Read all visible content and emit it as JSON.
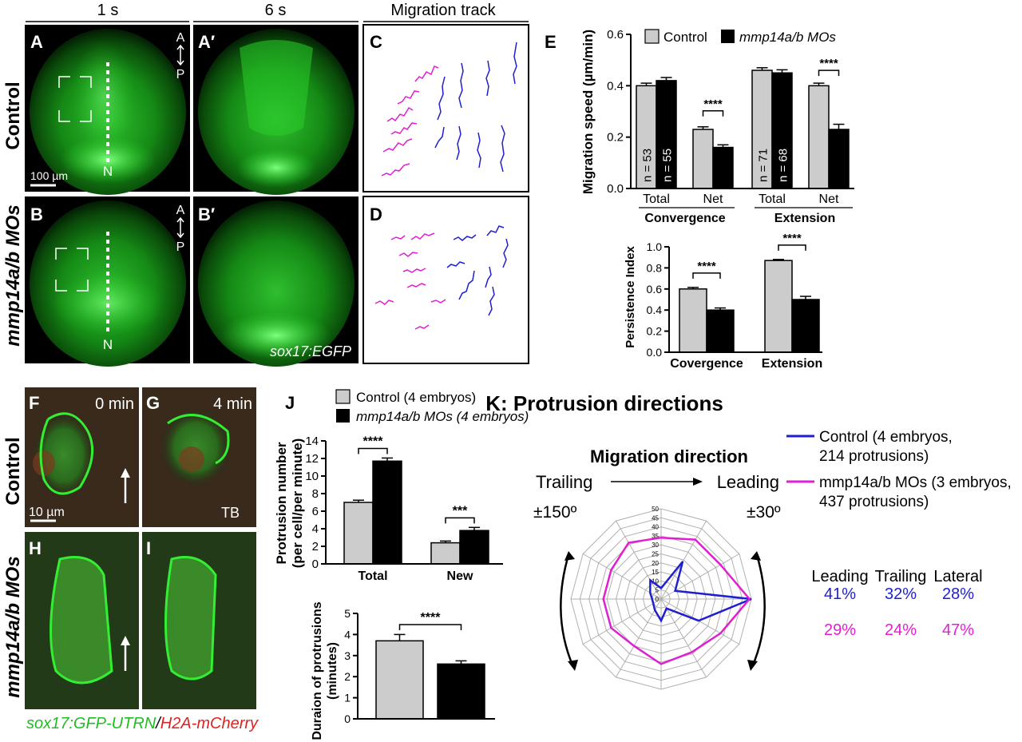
{
  "figure": {
    "col_headers": [
      "1 s",
      "6 s",
      "Migration track"
    ],
    "panel_letters": {
      "A": "A",
      "A2": "A′",
      "B": "B",
      "B2": "B′",
      "C": "C",
      "D": "D",
      "E": "E",
      "F": "F",
      "G": "G",
      "H": "H",
      "I": "I",
      "J": "J"
    },
    "row_labels": {
      "control": "Control",
      "mo": "mmp14a/b MOs"
    },
    "ap_axis": {
      "a": "A",
      "p": "P"
    },
    "notochord": "N",
    "scale_100": "100 µm",
    "scale_10": "10 µm",
    "transgene_1": "sox17:EGFP",
    "time_0": "0 min",
    "time_4": "4 min",
    "tb": "TB",
    "caption_green": "sox17:GFP-UTRN",
    "caption_slash": "/",
    "caption_red": "H2A-mCherry"
  },
  "colors": {
    "control": "#1f1fd0",
    "mo": "#e020d0",
    "gray_bar": "#cccccc",
    "black_bar": "#000000",
    "fluor": "#22dd22"
  },
  "chart_data": [
    {
      "id": "E-speed",
      "type": "bar",
      "ylabel": "Migration speed (µm/min)",
      "ylim": [
        0,
        0.6
      ],
      "yticks": [
        "0.0",
        "0.2",
        "0.4",
        "0.6"
      ],
      "legend": [
        "Control",
        "mmp14a/b MOs"
      ],
      "categories": [
        "Total",
        "Net",
        "Total",
        "Net"
      ],
      "groups": [
        "Convergence",
        "Extension"
      ],
      "series": [
        {
          "name": "Control",
          "values": [
            0.4,
            0.23,
            0.46,
            0.4
          ],
          "err": [
            0.01,
            0.01,
            0.01,
            0.01
          ]
        },
        {
          "name": "mmp14a/b MOs",
          "values": [
            0.42,
            0.16,
            0.45,
            0.23
          ],
          "err": [
            0.012,
            0.01,
            0.012,
            0.02
          ]
        }
      ],
      "n_labels": [
        "n = 53",
        "n = 55",
        "n = 71",
        "n = 68"
      ],
      "sig": [
        "****",
        "****"
      ]
    },
    {
      "id": "E-persist",
      "type": "bar",
      "ylabel": "Persistence Index",
      "ylim": [
        0,
        1.0
      ],
      "yticks": [
        "0.0",
        "0.2",
        "0.4",
        "0.6",
        "0.8",
        "1.0"
      ],
      "categories": [
        "Covergence",
        "Extension"
      ],
      "series": [
        {
          "name": "Control",
          "values": [
            0.6,
            0.87
          ],
          "err": [
            0.015,
            0.01
          ]
        },
        {
          "name": "mmp14a/b MOs",
          "values": [
            0.4,
            0.5
          ],
          "err": [
            0.02,
            0.03
          ]
        }
      ],
      "sig": [
        "****",
        "****"
      ]
    },
    {
      "id": "J-number",
      "type": "bar",
      "ylabel_1": "Protrusion number",
      "ylabel_2": "(per cell/per minute)",
      "ylim": [
        0,
        14
      ],
      "yticks": [
        "0",
        "2",
        "4",
        "6",
        "8",
        "10",
        "12",
        "14"
      ],
      "legend": [
        "Control (4 embryos)",
        "mmp14a/b MOs (4 embryos)"
      ],
      "categories": [
        "Total",
        "New"
      ],
      "series": [
        {
          "name": "Control (4 embryos)",
          "values": [
            7.0,
            2.4
          ],
          "err": [
            0.25,
            0.2
          ]
        },
        {
          "name": "mmp14a/b MOs (4 embryos)",
          "values": [
            11.7,
            3.8
          ],
          "err": [
            0.35,
            0.35
          ]
        }
      ],
      "sig": [
        "****",
        "***"
      ]
    },
    {
      "id": "J-duration",
      "type": "bar",
      "ylabel_1": "Duraion of protrusions",
      "ylabel_2": "(minutes)",
      "ylim": [
        0,
        5
      ],
      "yticks": [
        "0",
        "1",
        "2",
        "3",
        "4",
        "5"
      ],
      "series": [
        {
          "name": "Control",
          "values": [
            3.7
          ],
          "err": [
            0.3
          ]
        },
        {
          "name": "mmp14a/b MOs",
          "values": [
            2.6
          ],
          "err": [
            0.15
          ]
        }
      ],
      "sig": [
        "****"
      ]
    },
    {
      "id": "K-radar",
      "type": "radar",
      "title": "K: Protrusion directions",
      "subtitle": "Migration direction",
      "trailing": "Trailing",
      "leading": "Leading",
      "angle_left": "±150º",
      "angle_right": "±30º",
      "rmax": 50,
      "ticks": [
        "0",
        "5",
        "10",
        "15",
        "20",
        "25",
        "30",
        "35",
        "40",
        "45",
        "50"
      ],
      "series": [
        {
          "name": "Control",
          "values": [
            50,
            24,
            6,
            12,
            7,
            5,
            5,
            7,
            12,
            6,
            24,
            9
          ]
        },
        {
          "name": "mmp14a/b MOs",
          "values": [
            49,
            38,
            34,
            36,
            30,
            32,
            32,
            32,
            36,
            34,
            38,
            38
          ]
        }
      ],
      "legend": [
        {
          "line1": "Control (4 embryos,",
          "line2": "214 protrusions)"
        },
        {
          "line1": "mmp14a/b MOs (3 embryos,",
          "line2": "437 protrusions)"
        }
      ],
      "table": {
        "headers": [
          "Leading",
          "Trailing",
          "Lateral"
        ],
        "control": [
          "41%",
          "32%",
          "28%"
        ],
        "mo": [
          "29%",
          "24%",
          "47%"
        ]
      }
    }
  ]
}
